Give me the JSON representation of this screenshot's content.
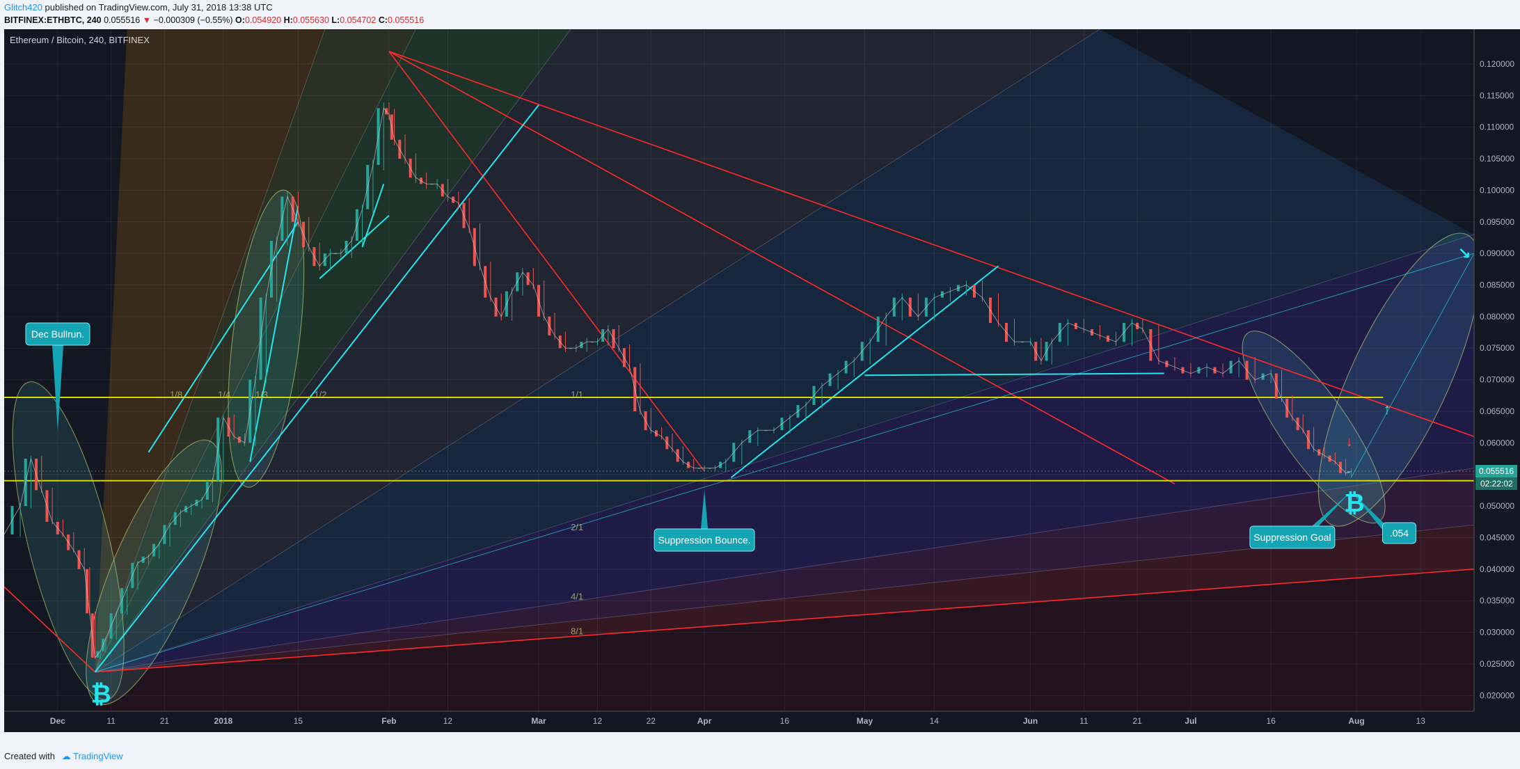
{
  "header": {
    "author": "Glitch420",
    "published": "published on TradingView.com, July 31, 2018 13:38 UTC",
    "symbol": "BITFINEX:ETHBTC, 240",
    "last": "0.055516",
    "change_arrow": "▼",
    "change": "−0.000309 (−0.55%)",
    "o_label": "O:",
    "o": "0.054920",
    "h_label": "H:",
    "h": "0.055630",
    "l_label": "L:",
    "l": "0.054702",
    "c_label": "C:",
    "c": "0.055516"
  },
  "footer": {
    "created_with": "Created with",
    "brand": "TradingView"
  },
  "chart_data": {
    "type": "line",
    "title": "Ethereum / Bitcoin, 240, BITFINEX",
    "xlabel": "",
    "ylabel": "",
    "ylim": [
      0.0175,
      0.1255
    ],
    "xlim": [
      "2017-11-21",
      "2018-08-23"
    ],
    "yticks": [
      "0.120000",
      "0.115000",
      "0.110000",
      "0.105000",
      "0.100000",
      "0.095000",
      "0.090000",
      "0.085000",
      "0.080000",
      "0.075000",
      "0.070000",
      "0.065000",
      "0.060000",
      "0.055000",
      "0.050000",
      "0.045000",
      "0.040000",
      "0.035000",
      "0.030000",
      "0.025000",
      "0.020000"
    ],
    "xticks": [
      {
        "date": "2017-12-01",
        "label": "Dec"
      },
      {
        "date": "2017-12-11",
        "label": "11"
      },
      {
        "date": "2017-12-21",
        "label": "21"
      },
      {
        "date": "2018-01-01",
        "label": "2018"
      },
      {
        "date": "2018-01-15",
        "label": "15"
      },
      {
        "date": "2018-02-01",
        "label": "Feb"
      },
      {
        "date": "2018-02-12",
        "label": "12"
      },
      {
        "date": "2018-03-01",
        "label": "Mar"
      },
      {
        "date": "2018-03-12",
        "label": "12"
      },
      {
        "date": "2018-03-22",
        "label": "22"
      },
      {
        "date": "2018-04-01",
        "label": "Apr"
      },
      {
        "date": "2018-04-16",
        "label": "16"
      },
      {
        "date": "2018-05-01",
        "label": "May"
      },
      {
        "date": "2018-05-14",
        "label": "14"
      },
      {
        "date": "2018-06-01",
        "label": "Jun"
      },
      {
        "date": "2018-06-11",
        "label": "11"
      },
      {
        "date": "2018-06-21",
        "label": "21"
      },
      {
        "date": "2018-07-01",
        "label": "Jul"
      },
      {
        "date": "2018-07-16",
        "label": "16"
      },
      {
        "date": "2018-08-01",
        "label": "Aug"
      },
      {
        "date": "2018-08-13",
        "label": "13"
      }
    ],
    "series": [
      {
        "values": [
          [
            "2017-11-21",
            0.0455
          ],
          [
            "2017-11-24",
            0.05
          ],
          [
            "2017-11-26",
            0.0575
          ],
          [
            "2017-11-28",
            0.0525
          ],
          [
            "2017-11-30",
            0.0475
          ],
          [
            "2017-12-02",
            0.0455
          ],
          [
            "2017-12-04",
            0.043
          ],
          [
            "2017-12-06",
            0.04
          ],
          [
            "2017-12-07",
            0.033
          ],
          [
            "2017-12-08",
            0.026
          ],
          [
            "2017-12-09",
            0.027
          ],
          [
            "2017-12-10",
            0.029
          ],
          [
            "2017-12-12",
            0.033
          ],
          [
            "2017-12-14",
            0.037
          ],
          [
            "2017-12-16",
            0.041
          ],
          [
            "2017-12-18",
            0.042
          ],
          [
            "2017-12-20",
            0.044
          ],
          [
            "2017-12-22",
            0.047
          ],
          [
            "2017-12-24",
            0.049
          ],
          [
            "2017-12-26",
            0.05
          ],
          [
            "2017-12-28",
            0.051
          ],
          [
            "2017-12-30",
            0.054
          ],
          [
            "2018-01-01",
            0.064
          ],
          [
            "2018-01-03",
            0.061
          ],
          [
            "2018-01-05",
            0.06
          ],
          [
            "2018-01-07",
            0.07
          ],
          [
            "2018-01-09",
            0.083
          ],
          [
            "2018-01-11",
            0.092
          ],
          [
            "2018-01-13",
            0.099
          ],
          [
            "2018-01-15",
            0.095
          ],
          [
            "2018-01-17",
            0.091
          ],
          [
            "2018-01-19",
            0.088
          ],
          [
            "2018-01-21",
            0.09
          ],
          [
            "2018-01-23",
            0.09
          ],
          [
            "2018-01-25",
            0.092
          ],
          [
            "2018-01-27",
            0.097
          ],
          [
            "2018-01-29",
            0.104
          ],
          [
            "2018-01-31",
            0.113
          ],
          [
            "2018-02-01",
            0.112
          ],
          [
            "2018-02-02",
            0.108
          ],
          [
            "2018-02-04",
            0.105
          ],
          [
            "2018-02-06",
            0.102
          ],
          [
            "2018-02-08",
            0.101
          ],
          [
            "2018-02-10",
            0.101
          ],
          [
            "2018-02-12",
            0.099
          ],
          [
            "2018-02-14",
            0.098
          ],
          [
            "2018-02-16",
            0.094
          ],
          [
            "2018-02-18",
            0.088
          ],
          [
            "2018-02-20",
            0.083
          ],
          [
            "2018-02-22",
            0.08
          ],
          [
            "2018-02-24",
            0.084
          ],
          [
            "2018-02-26",
            0.087
          ],
          [
            "2018-02-28",
            0.085
          ],
          [
            "2018-03-02",
            0.08
          ],
          [
            "2018-03-04",
            0.077
          ],
          [
            "2018-03-06",
            0.075
          ],
          [
            "2018-03-08",
            0.075
          ],
          [
            "2018-03-10",
            0.076
          ],
          [
            "2018-03-12",
            0.076
          ],
          [
            "2018-03-14",
            0.078
          ],
          [
            "2018-03-16",
            0.075
          ],
          [
            "2018-03-18",
            0.072
          ],
          [
            "2018-03-20",
            0.065
          ],
          [
            "2018-03-22",
            0.062
          ],
          [
            "2018-03-24",
            0.061
          ],
          [
            "2018-03-26",
            0.059
          ],
          [
            "2018-03-28",
            0.057
          ],
          [
            "2018-03-30",
            0.056
          ],
          [
            "2018-04-01",
            0.056
          ],
          [
            "2018-04-03",
            0.056
          ],
          [
            "2018-04-05",
            0.057
          ],
          [
            "2018-04-08",
            0.06
          ],
          [
            "2018-04-11",
            0.062
          ],
          [
            "2018-04-14",
            0.062
          ],
          [
            "2018-04-17",
            0.064
          ],
          [
            "2018-04-20",
            0.066
          ],
          [
            "2018-04-23",
            0.069
          ],
          [
            "2018-04-26",
            0.071
          ],
          [
            "2018-04-29",
            0.073
          ],
          [
            "2018-05-02",
            0.076
          ],
          [
            "2018-05-05",
            0.08
          ],
          [
            "2018-05-08",
            0.083
          ],
          [
            "2018-05-11",
            0.08
          ],
          [
            "2018-05-14",
            0.083
          ],
          [
            "2018-05-17",
            0.084
          ],
          [
            "2018-05-20",
            0.085
          ],
          [
            "2018-05-23",
            0.083
          ],
          [
            "2018-05-26",
            0.079
          ],
          [
            "2018-05-29",
            0.076
          ],
          [
            "2018-06-01",
            0.076
          ],
          [
            "2018-06-03",
            0.073
          ],
          [
            "2018-06-05",
            0.076
          ],
          [
            "2018-06-08",
            0.079
          ],
          [
            "2018-06-11",
            0.078
          ],
          [
            "2018-06-14",
            0.077
          ],
          [
            "2018-06-17",
            0.076
          ],
          [
            "2018-06-20",
            0.079
          ],
          [
            "2018-06-22",
            0.078
          ],
          [
            "2018-06-25",
            0.073
          ],
          [
            "2018-06-28",
            0.072
          ],
          [
            "2018-07-01",
            0.071
          ],
          [
            "2018-07-04",
            0.072
          ],
          [
            "2018-07-07",
            0.071
          ],
          [
            "2018-07-10",
            0.073
          ],
          [
            "2018-07-13",
            0.07
          ],
          [
            "2018-07-16",
            0.071
          ],
          [
            "2018-07-18",
            0.067
          ],
          [
            "2018-07-20",
            0.064
          ],
          [
            "2018-07-22",
            0.062
          ],
          [
            "2018-07-24",
            0.059
          ],
          [
            "2018-07-26",
            0.058
          ],
          [
            "2018-07-28",
            0.057
          ],
          [
            "2018-07-30",
            0.0552
          ],
          [
            "2018-07-31",
            0.0555
          ]
        ]
      }
    ],
    "price_levels": [
      {
        "label": "1/8",
        "value": 0.0665
      },
      {
        "label": "1/4",
        "value": 0.0665
      },
      {
        "label": "1/3",
        "value": 0.0665
      },
      {
        "label": "1/2",
        "value": 0.0665
      },
      {
        "label": "1/1",
        "value": 0.0665
      },
      {
        "label": "2/1",
        "value": 0.0455
      },
      {
        "label": "4/1",
        "value": 0.0345
      },
      {
        "label": "8/1",
        "value": 0.029
      }
    ],
    "annotations": [
      {
        "text": "Dec Bullrun."
      },
      {
        "text": "Suppression Bounce."
      },
      {
        "text": "Suppression Goal"
      },
      {
        "text": ".054"
      }
    ],
    "last_price_label": "0.055516",
    "countdown_label": "02:22:02",
    "colors": {
      "background": "#131722",
      "up": "#26a69a",
      "down": "#ef5350",
      "support": "#d9d700",
      "trend": "#ff2a2a",
      "cyan": "#25e6ef",
      "callout": "#15a4b4",
      "last_price": "#26a69a"
    }
  }
}
